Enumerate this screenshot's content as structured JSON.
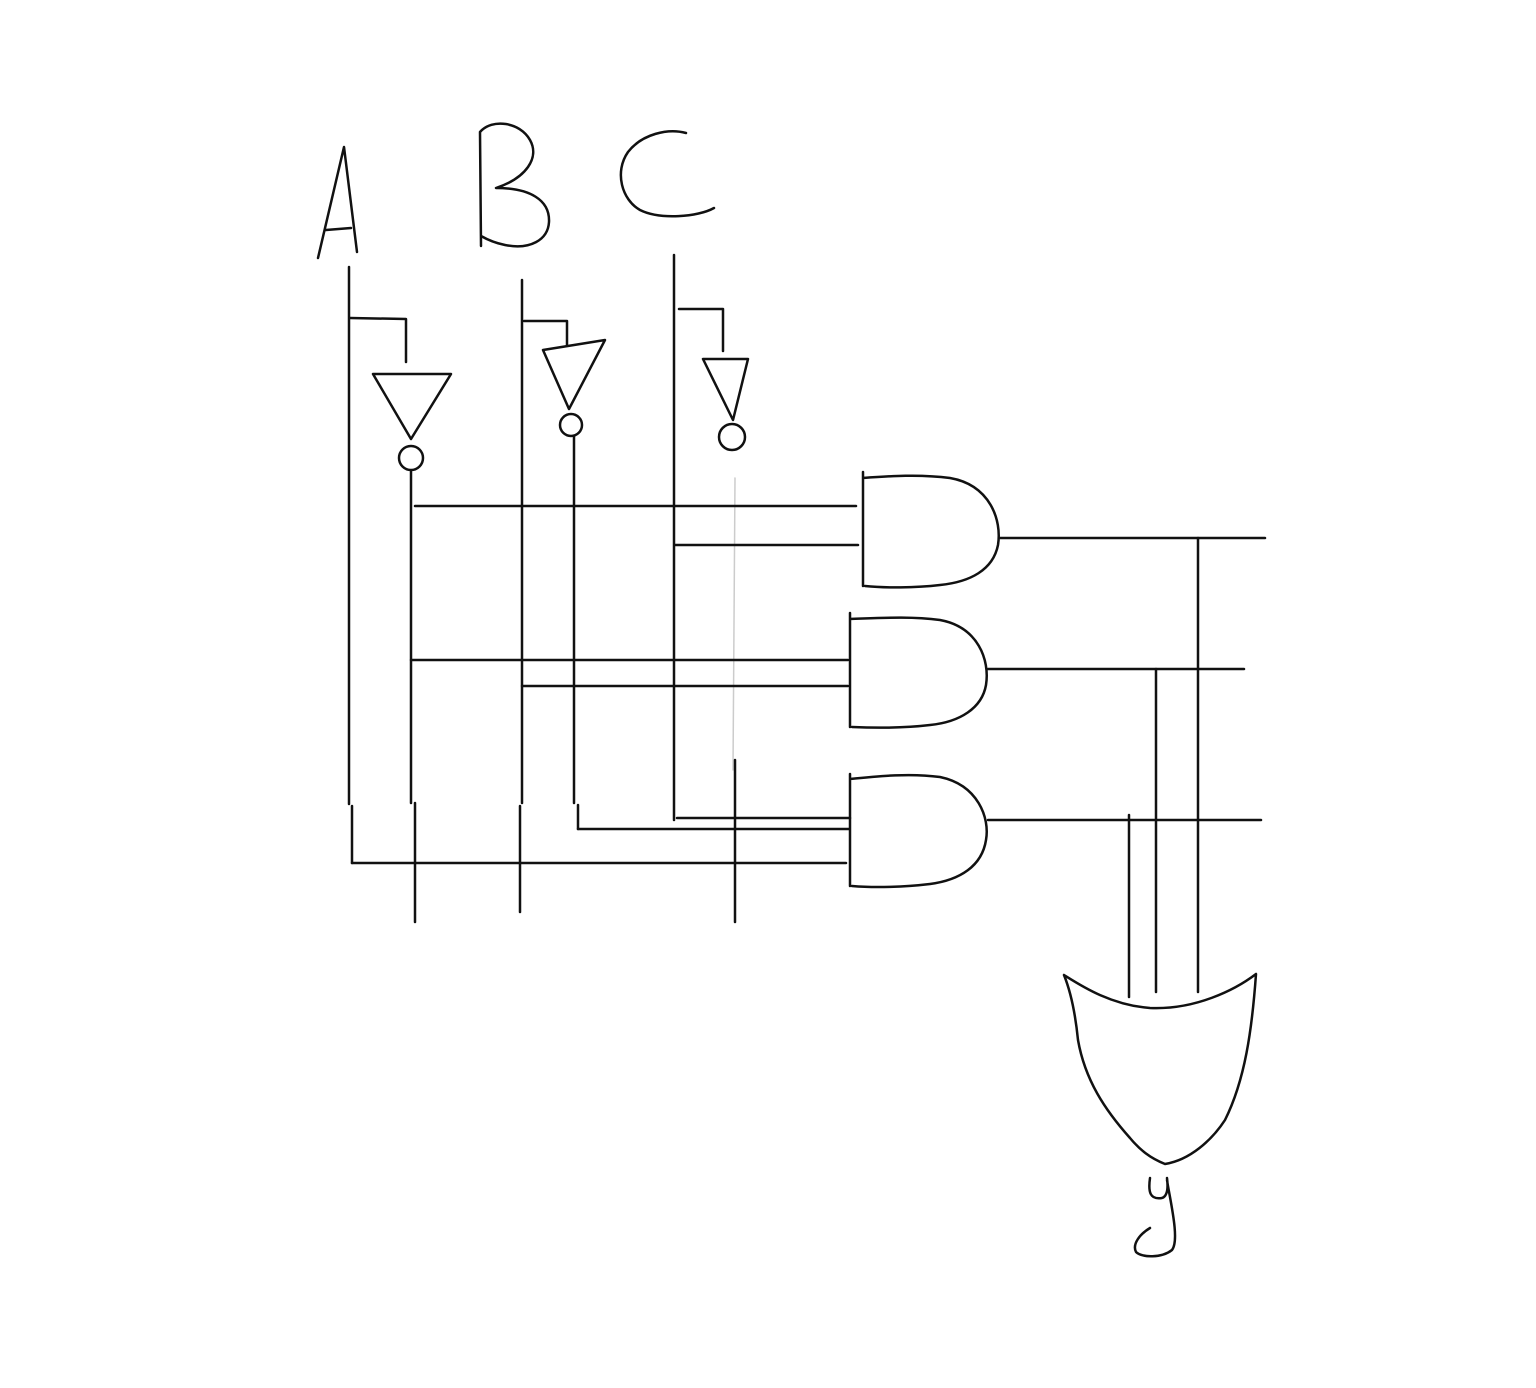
{
  "diagram": {
    "inputs": [
      {
        "id": "A",
        "label": "A"
      },
      {
        "id": "B",
        "label": "B"
      },
      {
        "id": "C",
        "label": "C"
      }
    ],
    "output": {
      "id": "y",
      "label": "y"
    },
    "gates": {
      "not": [
        "A",
        "B",
        "C"
      ],
      "and": [
        {
          "id": "and-1",
          "inputs": [
            "NOT A",
            "C"
          ]
        },
        {
          "id": "and-2",
          "inputs": [
            "NOT A",
            "B"
          ]
        },
        {
          "id": "and-3",
          "inputs": [
            "C",
            "NOT B",
            "A"
          ]
        }
      ],
      "or": {
        "id": "or-1",
        "inputs": [
          "and-1",
          "and-2",
          "and-3"
        ],
        "output": "y"
      }
    },
    "ink_color": "#111111",
    "background_color": "#ffffff"
  }
}
